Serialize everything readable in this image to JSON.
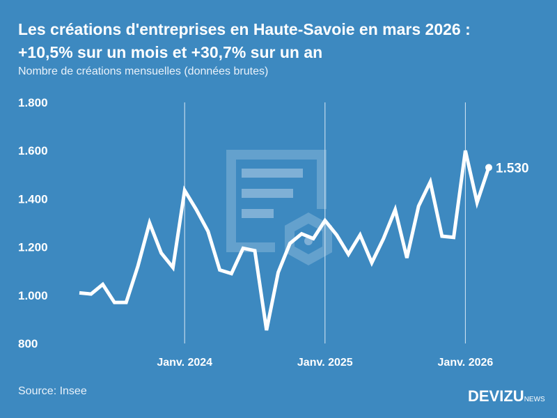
{
  "title_line1": "Les créations d'entreprises en Haute-Savoie en mars 2026 :",
  "title_line2": "+10,5% sur un mois et +30,7% sur un an",
  "subtitle": "Nombre de créations mensuelles (données brutes)",
  "source": "Source: Insee",
  "logo": {
    "main": "DEVIZU",
    "suffix": "NEWS"
  },
  "colors": {
    "background": "#3d89c0",
    "line": "#ffffff"
  },
  "chart_data": {
    "type": "line",
    "x": [
      "2023-04",
      "2023-05",
      "2023-06",
      "2023-07",
      "2023-08",
      "2023-09",
      "2023-10",
      "2023-11",
      "2023-12",
      "2024-01",
      "2024-02",
      "2024-03",
      "2024-04",
      "2024-05",
      "2024-06",
      "2024-07",
      "2024-08",
      "2024-09",
      "2024-10",
      "2024-11",
      "2024-12",
      "2025-01",
      "2025-02",
      "2025-03",
      "2025-04",
      "2025-05",
      "2025-06",
      "2025-07",
      "2025-08",
      "2025-09",
      "2025-10",
      "2025-11",
      "2025-12",
      "2026-01",
      "2026-02",
      "2026-03"
    ],
    "values": [
      1010,
      1005,
      1045,
      970,
      970,
      1120,
      1300,
      1175,
      1115,
      1435,
      1355,
      1265,
      1105,
      1090,
      1195,
      1185,
      855,
      1095,
      1215,
      1255,
      1235,
      1310,
      1250,
      1170,
      1250,
      1135,
      1235,
      1355,
      1155,
      1370,
      1470,
      1245,
      1240,
      1600,
      1385,
      1530
    ],
    "ylim": [
      800,
      1800
    ],
    "yticks": [
      800,
      1000,
      1200,
      1400,
      1600,
      1800
    ],
    "ytick_labels": [
      "800",
      "1.000",
      "1.200",
      "1.400",
      "1.600",
      "1.800"
    ],
    "xtick_labels": [
      {
        "x": "2024-01",
        "label": "Janv. 2024"
      },
      {
        "x": "2025-01",
        "label": "Janv. 2025"
      },
      {
        "x": "2026-01",
        "label": "Janv. 2026"
      }
    ],
    "last_value_label": "1.530",
    "grid": "vertical lines at January",
    "legend": "none"
  }
}
